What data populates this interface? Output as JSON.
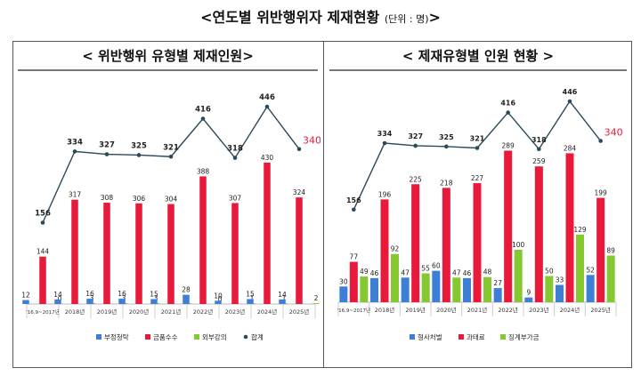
{
  "title": "<연도별 위반행위자 제재현황",
  "unit_note": "(단위 : 명)",
  "title_close": ">",
  "colors": {
    "blue": "#3d7fd6",
    "red": "#e8193a",
    "green": "#86c832",
    "line": "#2b4a5a",
    "highlight": "#e8193a"
  },
  "chart_data": [
    {
      "type": "bar",
      "title": "< 위반행위 유형별 제재인원>",
      "categories": [
        "'16.9~2017년",
        "2018년",
        "2019년",
        "2020년",
        "2021년",
        "2022년",
        "2023년",
        "2024년",
        "2025년"
      ],
      "series": [
        {
          "name": "부정청탁",
          "values": [
            12,
            14,
            16,
            16,
            15,
            28,
            10,
            15,
            14
          ]
        },
        {
          "name": "금품수수",
          "values": [
            144,
            317,
            308,
            306,
            304,
            388,
            307,
            430,
            324
          ]
        },
        {
          "name": "외부강의",
          "values": [
            0,
            3,
            3,
            3,
            2,
            0,
            1,
            1,
            2
          ]
        },
        {
          "name": "합계",
          "type": "line",
          "values": [
            156,
            334,
            327,
            325,
            321,
            416,
            318,
            446,
            340
          ]
        }
      ],
      "legend": [
        "부정청탁",
        "금품수수",
        "외부강의",
        "합계"
      ],
      "legend_position": "bottom"
    },
    {
      "type": "bar",
      "title": "< 제재유형별 인원 현황 >",
      "categories": [
        "'16.9~2017년",
        "2018년",
        "2019년",
        "2020년",
        "2021년",
        "2022년",
        "2023년",
        "2024년",
        "2025년"
      ],
      "series": [
        {
          "name": "형사처벌",
          "values": [
            30,
            46,
            47,
            60,
            46,
            27,
            9,
            33,
            52
          ]
        },
        {
          "name": "과태료",
          "values": [
            77,
            196,
            225,
            218,
            227,
            289,
            259,
            284,
            199
          ]
        },
        {
          "name": "징계부가금",
          "values": [
            49,
            92,
            55,
            47,
            48,
            100,
            50,
            129,
            89
          ]
        },
        {
          "type": "line",
          "values": [
            156,
            334,
            327,
            325,
            321,
            416,
            318,
            446,
            340
          ]
        }
      ],
      "legend": [
        "형사처벌",
        "과태료",
        "징계부가금"
      ],
      "legend_position": "bottom"
    }
  ]
}
